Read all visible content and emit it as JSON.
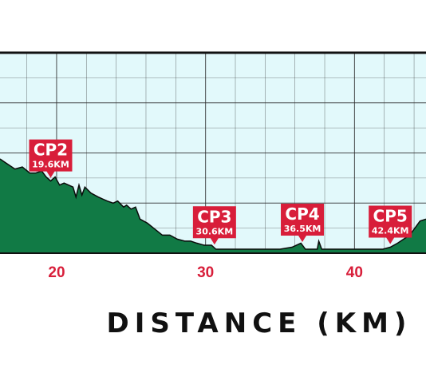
{
  "chart_data": {
    "type": "area",
    "title": "",
    "xlabel": "DISTANCE (KM)",
    "ylabel": "",
    "xlim": [
      16.2,
      44.8
    ],
    "ylim": [
      0,
      1
    ],
    "grid": true,
    "legend": "none",
    "x_ticks": [
      {
        "value": 20,
        "label": "20"
      },
      {
        "value": 30,
        "label": "30"
      },
      {
        "value": 40,
        "label": "40"
      }
    ],
    "colors": {
      "plot_background": "#e2f9fb",
      "fill": "#117a45",
      "outline": "#0a0a0a",
      "grid": "#2a2a2a",
      "marker": "#d81e3a",
      "tick_label": "#d81e3a",
      "axis_title": "#111111"
    },
    "x": [
      16.2,
      16.6,
      17.2,
      17.7,
      18.2,
      18.6,
      19.0,
      19.3,
      19.6,
      19.9,
      20.2,
      20.5,
      20.8,
      21.1,
      21.3,
      21.5,
      21.7,
      21.9,
      22.3,
      22.8,
      23.4,
      23.8,
      24.1,
      24.5,
      24.7,
      25.0,
      25.3,
      25.6,
      26.1,
      26.6,
      27.1,
      27.6,
      28.1,
      28.6,
      29.0,
      29.4,
      29.9,
      30.4,
      30.7,
      31.0,
      31.5,
      32.0,
      33.0,
      34.0,
      35.0,
      35.8,
      36.4,
      36.7,
      37.1,
      37.5,
      37.6,
      37.8,
      38.2,
      39.0,
      40.0,
      41.0,
      41.9,
      42.4,
      42.9,
      43.3,
      43.7,
      44.0,
      44.4,
      44.8
    ],
    "series": [
      {
        "name": "",
        "values": [
          0.47,
          0.45,
          0.42,
          0.43,
          0.4,
          0.4,
          0.41,
          0.38,
          0.36,
          0.38,
          0.34,
          0.35,
          0.34,
          0.33,
          0.28,
          0.34,
          0.29,
          0.33,
          0.3,
          0.28,
          0.26,
          0.25,
          0.26,
          0.23,
          0.24,
          0.22,
          0.23,
          0.17,
          0.15,
          0.12,
          0.09,
          0.09,
          0.07,
          0.06,
          0.06,
          0.05,
          0.04,
          0.04,
          0.02,
          0.02,
          0.02,
          0.02,
          0.02,
          0.02,
          0.02,
          0.03,
          0.05,
          0.02,
          0.02,
          0.02,
          0.06,
          0.02,
          0.02,
          0.02,
          0.02,
          0.02,
          0.02,
          0.03,
          0.05,
          0.07,
          0.09,
          0.12,
          0.16,
          0.17
        ]
      }
    ],
    "checkpoints": [
      {
        "name": "CP2",
        "distance_label": "19.6KM",
        "x": 19.6
      },
      {
        "name": "CP3",
        "distance_label": "30.6KM",
        "x": 30.6
      },
      {
        "name": "CP4",
        "distance_label": "36.5KM",
        "x": 36.5
      },
      {
        "name": "CP5",
        "distance_label": "42.4KM",
        "x": 42.4
      }
    ]
  }
}
